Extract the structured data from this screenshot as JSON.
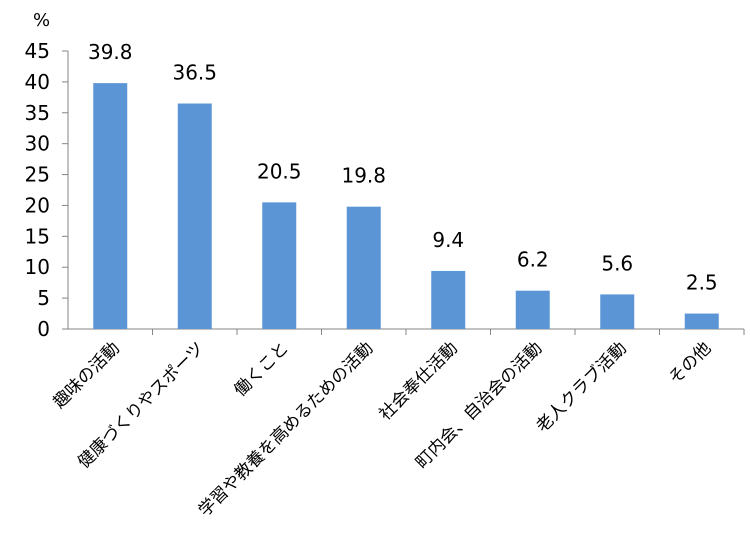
{
  "chart_data": {
    "type": "bar",
    "ylabel": "%",
    "ylim": [
      0,
      45
    ],
    "yticks": [
      0,
      5,
      10,
      15,
      20,
      25,
      30,
      35,
      40,
      45
    ],
    "categories": [
      "趣味の活動",
      "健康づくりやスポーツ",
      "働くこと",
      "学習や教養を高めるための活動",
      "社会奉仕活動",
      "町内会、自治会の活動",
      "老人クラブ活動",
      "その他"
    ],
    "values": [
      39.8,
      36.5,
      20.5,
      19.8,
      9.4,
      6.2,
      5.6,
      2.5
    ],
    "data_labels": [
      "39.8",
      "36.5",
      "20.5",
      "19.8",
      "9.4",
      "6.2",
      "5.6",
      "2.5"
    ],
    "bar_color": "#5b95d5",
    "grid": false,
    "legend": "none"
  }
}
